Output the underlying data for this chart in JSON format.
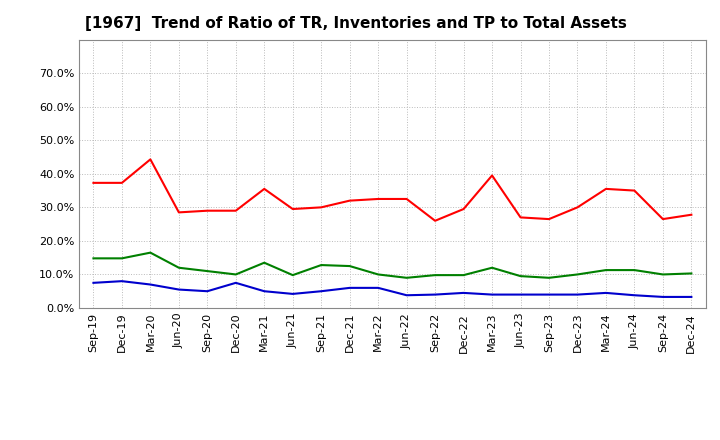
{
  "title": "[1967]  Trend of Ratio of TR, Inventories and TP to Total Assets",
  "x_labels": [
    "Sep-19",
    "Dec-19",
    "Mar-20",
    "Jun-20",
    "Sep-20",
    "Dec-20",
    "Mar-21",
    "Jun-21",
    "Sep-21",
    "Dec-21",
    "Mar-22",
    "Jun-22",
    "Sep-22",
    "Dec-22",
    "Mar-23",
    "Jun-23",
    "Sep-23",
    "Dec-23",
    "Mar-24",
    "Jun-24",
    "Sep-24",
    "Dec-24"
  ],
  "trade_receivables": [
    0.373,
    0.373,
    0.443,
    0.285,
    0.29,
    0.29,
    0.355,
    0.295,
    0.3,
    0.32,
    0.325,
    0.325,
    0.26,
    0.295,
    0.395,
    0.27,
    0.265,
    0.3,
    0.355,
    0.35,
    0.265,
    0.278
  ],
  "inventories": [
    0.075,
    0.08,
    0.07,
    0.055,
    0.05,
    0.075,
    0.05,
    0.042,
    0.05,
    0.06,
    0.06,
    0.038,
    0.04,
    0.045,
    0.04,
    0.04,
    0.04,
    0.04,
    0.045,
    0.038,
    0.033,
    0.033
  ],
  "trade_payables": [
    0.148,
    0.148,
    0.165,
    0.12,
    0.11,
    0.1,
    0.135,
    0.098,
    0.128,
    0.125,
    0.1,
    0.09,
    0.098,
    0.098,
    0.12,
    0.095,
    0.09,
    0.1,
    0.113,
    0.113,
    0.1,
    0.103
  ],
  "colors": {
    "trade_receivables": "#ff0000",
    "inventories": "#0000cd",
    "trade_payables": "#008000"
  },
  "ylim": [
    0.0,
    0.8
  ],
  "yticks": [
    0.0,
    0.1,
    0.2,
    0.3,
    0.4,
    0.5,
    0.6,
    0.7
  ],
  "background_color": "#ffffff",
  "plot_bg_color": "#ffffff",
  "grid_color": "#bbbbbb",
  "title_fontsize": 11,
  "tick_fontsize": 8,
  "legend_fontsize": 9
}
